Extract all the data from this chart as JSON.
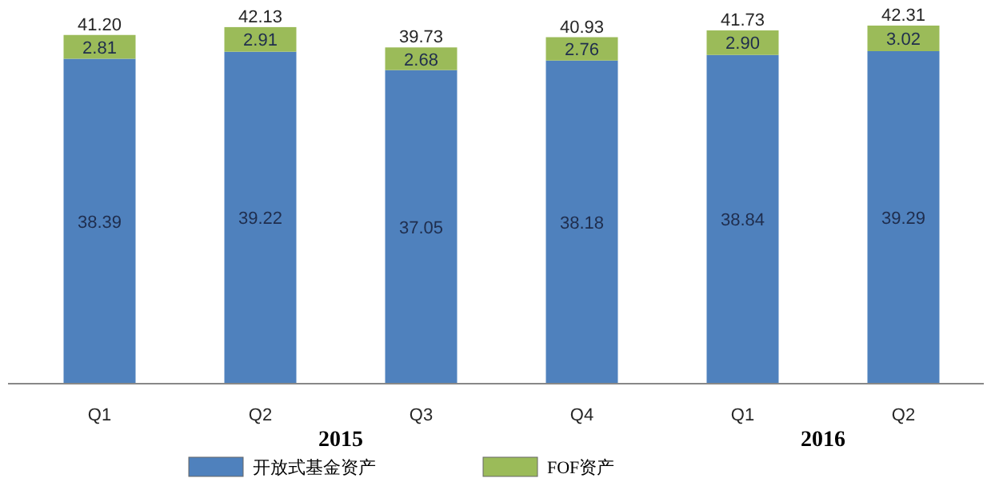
{
  "chart_data": {
    "type": "bar",
    "stacked": true,
    "legend": "bottom",
    "categories": [
      "Q1",
      "Q2",
      "Q3",
      "Q4",
      "Q1",
      "Q2"
    ],
    "series": [
      {
        "name": "开放式基金资产",
        "color": "#4f81bd",
        "values": [
          38.39,
          39.22,
          37.05,
          38.18,
          38.84,
          39.29
        ],
        "value_labels": [
          "38.39",
          "39.22",
          "37.05",
          "38.18",
          "38.84",
          "39.29"
        ]
      },
      {
        "name": "FOF资产",
        "color": "#9bbb59",
        "values": [
          2.81,
          2.91,
          2.68,
          2.76,
          2.9,
          3.02
        ],
        "value_labels": [
          "2.81",
          "2.91",
          "2.68",
          "2.76",
          "2.90",
          "3.02"
        ]
      }
    ],
    "totals": [
      "41.20",
      "42.13",
      "39.73",
      "40.93",
      "41.73",
      "42.31"
    ],
    "annotations": [
      "2015",
      "2016"
    ]
  }
}
